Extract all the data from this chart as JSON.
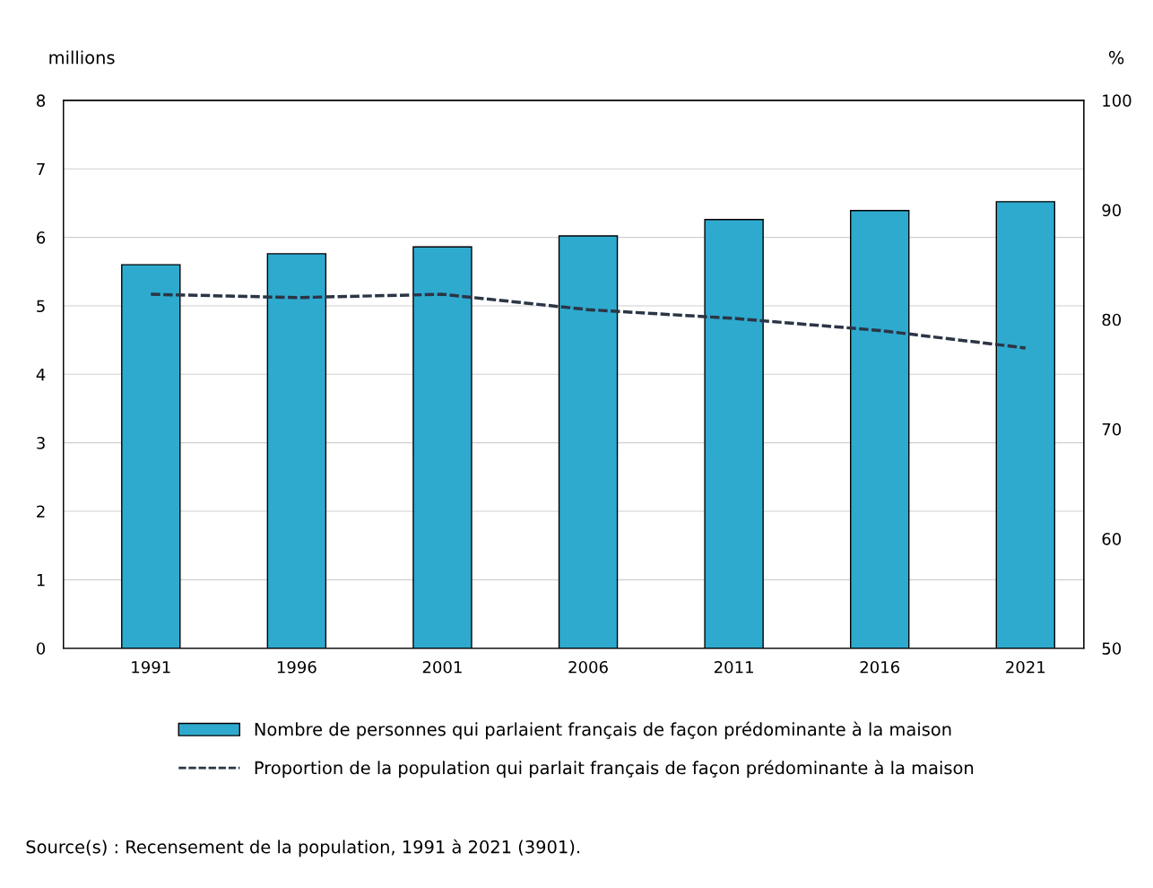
{
  "chart_data": {
    "type": "bar",
    "ylabel": "millions",
    "y2label": "%",
    "categories": [
      "1991",
      "1996",
      "2001",
      "2006",
      "2011",
      "2016",
      "2021"
    ],
    "series": [
      {
        "name": "Nombre de personnes qui parlaient français de façon prédominante à la maison",
        "color": "#2eaacf",
        "values": [
          5.6,
          5.76,
          5.86,
          6.02,
          6.26,
          6.39,
          6.52
        ]
      },
      {
        "name": "Proportion de la population qui parlait français de façon prédominante à la maison",
        "type": "line",
        "axis": "y2",
        "color": "#2b3545",
        "line_style": "dashed",
        "values": [
          82.3,
          82.0,
          82.3,
          80.9,
          80.1,
          79.0,
          77.4
        ]
      }
    ],
    "ylim": [
      0,
      8
    ],
    "yticks": [
      0,
      1,
      2,
      3,
      4,
      5,
      6,
      7,
      8
    ],
    "y2lim": [
      50,
      100
    ],
    "y2ticks": [
      50,
      60,
      70,
      80,
      90,
      100
    ],
    "grid": "y",
    "legend": "bottom",
    "annotations": [
      "Source(s) : Recensement de la population, 1991 à 2021 (3901)."
    ]
  }
}
